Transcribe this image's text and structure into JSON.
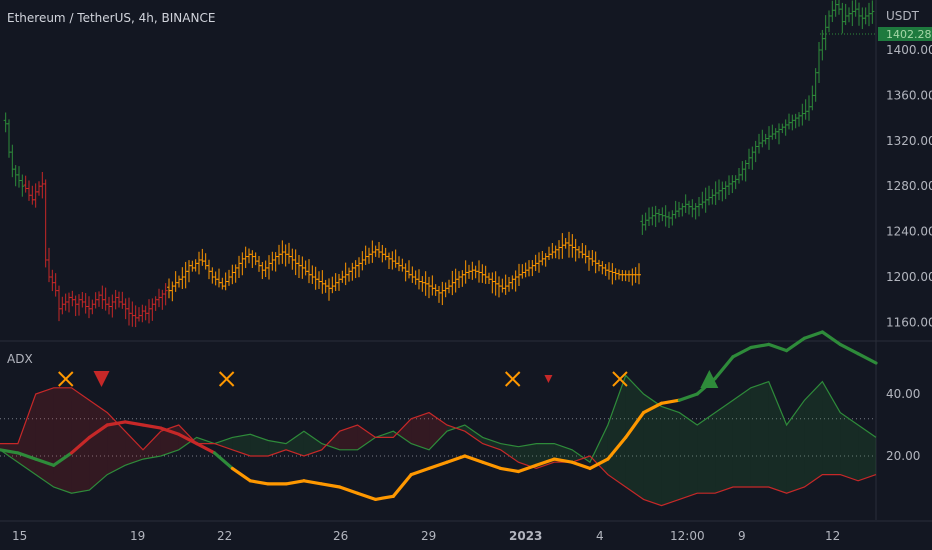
{
  "header": {
    "symbol": "Ethereum / TetherUS",
    "interval": "4h",
    "exchange": "BINANCE"
  },
  "price_axis": {
    "unit": "USDT",
    "ticks": [
      "1400.00",
      "1360.00",
      "1320.00",
      "1280.00",
      "1240.00",
      "1200.00",
      "1160.00"
    ],
    "current_price": "1402.28",
    "tick_values": [
      1400,
      1360,
      1320,
      1280,
      1240,
      1200,
      1160
    ]
  },
  "indicator": {
    "name": "ADX",
    "ticks": [
      "40.00",
      "20.00"
    ],
    "tick_values": [
      40,
      20
    ],
    "levels": [
      32,
      20
    ]
  },
  "time_axis": {
    "labels": [
      "15",
      "19",
      "22",
      "26",
      "29",
      "2023",
      "4",
      "12:00",
      "9",
      "12"
    ]
  },
  "colors": {
    "background": "#131722",
    "bull": "#2e8b3a",
    "bear": "#c62828",
    "neutral": "#ff9800",
    "marker_cross": "#ff9800",
    "grid": "#2a2e39"
  },
  "chart_data": [
    {
      "type": "ohlc",
      "ylim": [
        1140,
        1450
      ],
      "segments": [
        {
          "state": "bullish",
          "color": "#2e8b3a",
          "from_bar": 0,
          "to_bar": 5,
          "closes": [
            1335,
            1310,
            1295,
            1290,
            1285,
            1280
          ]
        },
        {
          "state": "bearish",
          "color": "#c62828",
          "from_bar": 6,
          "to_bar": 48,
          "closes": [
            1278,
            1272,
            1268,
            1275,
            1280,
            1282,
            1215,
            1200,
            1195,
            1188,
            1172,
            1176,
            1178,
            1182,
            1180,
            1176,
            1180,
            1178,
            1174,
            1172,
            1176,
            1180,
            1184,
            1180,
            1176,
            1174,
            1178,
            1182,
            1178,
            1176,
            1172,
            1168,
            1166,
            1164,
            1166,
            1170,
            1168,
            1172,
            1176,
            1180,
            1182,
            1185,
            1188
          ]
        },
        {
          "state": "neutral",
          "color": "#ff9800",
          "from_bar": 49,
          "to_bar": 190,
          "closes_summary": {
            "min": 1186,
            "max": 1230
          }
        },
        {
          "state": "bullish",
          "color": "#2e8b3a",
          "from_bar": 191,
          "to_bar": 260,
          "closes_summary": {
            "min": 1246,
            "max": 1440
          }
        }
      ]
    },
    {
      "type": "line",
      "title": "ADX",
      "ylim": [
        0,
        65
      ],
      "series": [
        {
          "color_by_state": true,
          "values": [
            22,
            21,
            19,
            17,
            21,
            26,
            30,
            31,
            30,
            29,
            27,
            24,
            21,
            16,
            12,
            11,
            11,
            12,
            11,
            10,
            8,
            6,
            7,
            14,
            16,
            18,
            20,
            18,
            16,
            15,
            17,
            19,
            18,
            16,
            19,
            26,
            34,
            37,
            38,
            40,
            45,
            52,
            55,
            56,
            54,
            58,
            60,
            56,
            53,
            50
          ]
        },
        {
          "color": "#2e8b3a",
          "values": [
            22,
            18,
            14,
            10,
            8,
            9,
            14,
            17,
            19,
            20,
            22,
            26,
            24,
            26,
            27,
            25,
            24,
            28,
            24,
            22,
            22,
            26,
            28,
            24,
            22,
            28,
            30,
            26,
            24,
            23,
            24,
            24,
            22,
            18,
            30,
            46,
            40,
            36,
            34,
            30,
            34,
            38,
            42,
            44,
            30,
            38,
            44,
            34,
            30,
            26
          ]
        },
        {
          "color": "#c62828",
          "values": [
            24,
            24,
            40,
            42,
            42,
            38,
            34,
            28,
            22,
            28,
            30,
            24,
            24,
            22,
            20,
            20,
            22,
            20,
            22,
            28,
            30,
            26,
            26,
            32,
            34,
            30,
            28,
            24,
            22,
            18,
            16,
            18,
            18,
            20,
            14,
            10,
            6,
            4,
            6,
            8,
            8,
            10,
            10,
            10,
            8,
            10,
            14,
            14,
            12,
            14
          ]
        }
      ]
    }
  ],
  "markers": [
    {
      "type": "cross",
      "color": "#ff9800",
      "time_index": 2
    },
    {
      "type": "triangle-down",
      "color": "#c62828",
      "time_index": 4,
      "size": "large"
    },
    {
      "type": "cross",
      "color": "#ff9800",
      "time_index": 11
    },
    {
      "type": "cross",
      "color": "#ff9800",
      "time_index": 27
    },
    {
      "type": "triangle-down",
      "color": "#c62828",
      "time_index": 29,
      "size": "small"
    },
    {
      "type": "cross",
      "color": "#ff9800",
      "time_index": 33
    },
    {
      "type": "triangle-up",
      "color": "#2e8b3a",
      "time_index": 38,
      "size": "large"
    }
  ]
}
